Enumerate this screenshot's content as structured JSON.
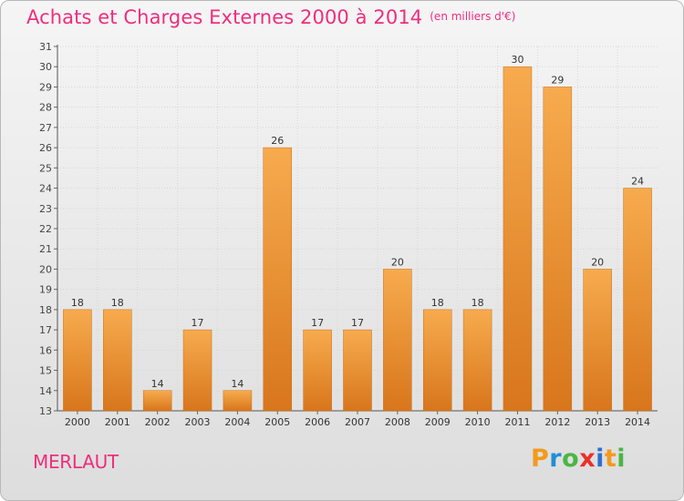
{
  "title": "Achats et Charges Externes 2000 à 2014",
  "unit": "(en milliers d'€)",
  "commune": "MERLAUT",
  "logo": {
    "text": "Proxiti",
    "letters": [
      "P",
      "r",
      "o",
      "x",
      "i",
      "t",
      "i"
    ],
    "colors": [
      "#f39a1e",
      "#1e8fd6",
      "#4bb543",
      "#e8302a",
      "#2f6fd0",
      "#f39a1e",
      "#4bb543"
    ]
  },
  "colors": {
    "title": "#ef2d7d",
    "bar_light": "#f7a94a",
    "bar_dark": "#d8761c",
    "axis": "#555555"
  },
  "chart_data": {
    "type": "bar",
    "categories": [
      "2000",
      "2001",
      "2002",
      "2003",
      "2004",
      "2005",
      "2006",
      "2007",
      "2008",
      "2009",
      "2010",
      "2011",
      "2012",
      "2013",
      "2014"
    ],
    "values": [
      18,
      18,
      14,
      17,
      14,
      26,
      17,
      17,
      20,
      18,
      18,
      30,
      29,
      20,
      24
    ],
    "data_labels": [
      "18",
      "18",
      "14",
      "17",
      "14",
      "26",
      "17",
      "17",
      "20",
      "18",
      "18",
      "30",
      "29",
      "20",
      "24"
    ],
    "y_ticks": [
      "13",
      "14",
      "15",
      "16",
      "17",
      "18",
      "19",
      "20",
      "21",
      "22",
      "23",
      "24",
      "25",
      "26",
      "27",
      "28",
      "29",
      "30",
      "31"
    ],
    "ylim": [
      13,
      31
    ],
    "title": "Achats et Charges Externes 2000 à 2014",
    "ylabel": "",
    "xlabel": "",
    "grid": true
  }
}
